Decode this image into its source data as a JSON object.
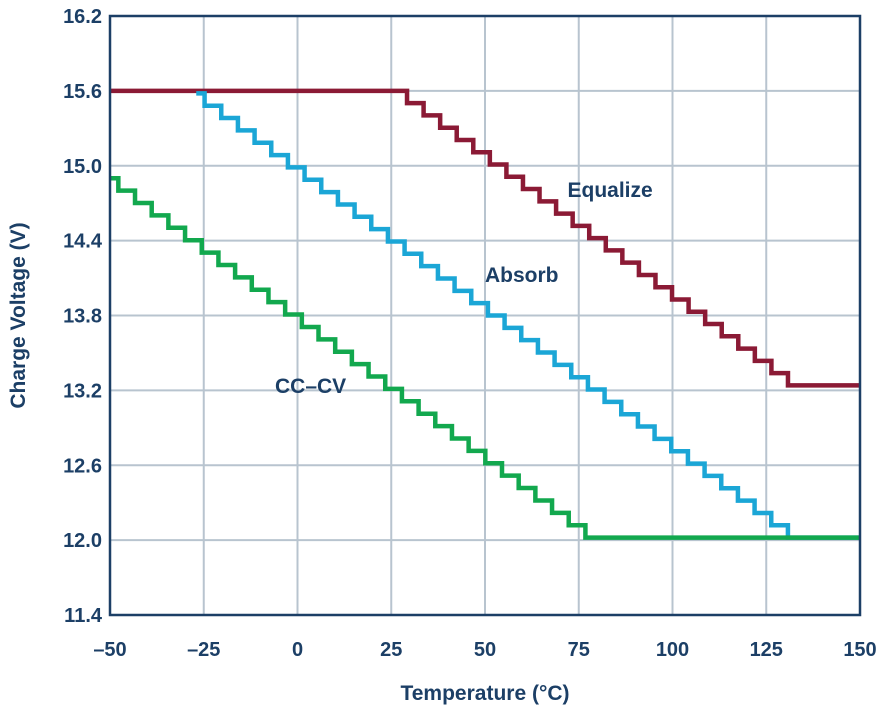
{
  "chart_data": {
    "type": "line",
    "title": "",
    "xlabel": "Temperature (°C)",
    "ylabel": "Charge Voltage (V)",
    "xlim": [
      -50,
      150
    ],
    "ylim": [
      11.4,
      16.2
    ],
    "xticks": [
      -50,
      -25,
      0,
      25,
      50,
      75,
      100,
      125,
      150
    ],
    "xtick_labels": [
      "–50",
      "–25",
      "0",
      "25",
      "50",
      "75",
      "100",
      "125",
      "150"
    ],
    "yticks": [
      11.4,
      12.0,
      12.6,
      13.2,
      13.8,
      14.4,
      15.0,
      15.6,
      16.2
    ],
    "ytick_labels": [
      "11.4",
      "12.0",
      "12.6",
      "13.2",
      "13.8",
      "14.4",
      "15.0",
      "15.6",
      "16.2"
    ],
    "grid": true,
    "legend": "none",
    "series": [
      {
        "name": "Equalize",
        "color": "#8b1a35",
        "style": "stepped",
        "x": [
          -50,
          27,
          133,
          150
        ],
        "y": [
          15.6,
          15.6,
          13.24,
          13.24
        ]
      },
      {
        "name": "Absorb",
        "color": "#1ba6d6",
        "style": "stepped",
        "x": [
          -27,
          133,
          150
        ],
        "y": [
          15.58,
          12.02,
          12.02
        ]
      },
      {
        "name": "CC–CV",
        "color": "#12a84e",
        "style": "stepped",
        "x": [
          -50,
          79,
          150
        ],
        "y": [
          14.9,
          12.02,
          12.02
        ]
      }
    ],
    "annotations": [
      {
        "text": "Equalize",
        "x": 72,
        "y": 14.75
      },
      {
        "text": "Absorb",
        "x": 50,
        "y": 14.07
      },
      {
        "text": "CC–CV",
        "x": -6,
        "y": 13.18
      }
    ]
  }
}
